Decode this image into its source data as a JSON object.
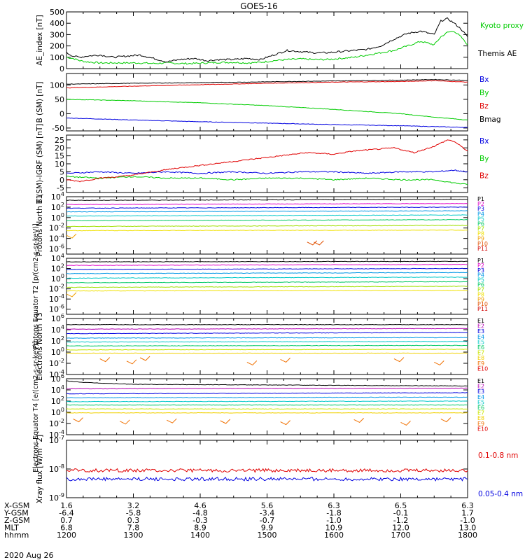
{
  "title": "GOES-16",
  "date_label": "2020 Aug 26",
  "colors": {
    "black": "#000000",
    "red": "#e00000",
    "green": "#00cc00",
    "blue": "#0000e0",
    "p_scale": [
      "#000000",
      "#e000c8",
      "#0000e0",
      "#0096e6",
      "#00c8c8",
      "#00c864",
      "#a0e000",
      "#f0e000",
      "#f0a000",
      "#e05000",
      "#d00000"
    ],
    "e_scale": [
      "#000000",
      "#b400b4",
      "#0000e0",
      "#0096e6",
      "#00c8c8",
      "#00c864",
      "#c8e600",
      "#f0d000",
      "#f07000",
      "#e00000"
    ]
  },
  "chart_data": [
    {
      "type": "line",
      "ylabel": "AE_index [nT]",
      "ylim": [
        0,
        500
      ],
      "yticks": [
        "0",
        "100",
        "200",
        "300",
        "400",
        "500"
      ],
      "legend": [
        "Kyoto proxy AE",
        "Themis AE"
      ],
      "series": [
        {
          "name": "Kyoto proxy AE",
          "x": [
            12.0,
            12.1,
            12.2,
            12.3,
            12.5,
            12.7,
            12.9,
            13.1,
            13.3,
            13.5,
            13.7,
            13.9,
            14.1,
            14.3,
            14.5,
            14.7,
            14.9,
            15.1,
            15.3,
            15.5,
            15.7,
            15.9,
            16.1,
            16.3,
            16.5,
            16.7,
            16.9,
            17.1,
            17.3,
            17.5,
            17.6,
            17.7,
            17.8,
            17.9,
            18.0
          ],
          "y": [
            100,
            90,
            70,
            60,
            50,
            50,
            50,
            50,
            45,
            50,
            45,
            45,
            50,
            55,
            55,
            50,
            55,
            70,
            80,
            85,
            80,
            80,
            90,
            100,
            120,
            140,
            160,
            200,
            240,
            210,
            280,
            320,
            330,
            280,
            210
          ]
        },
        {
          "name": "Themis AE",
          "x": [
            12.0,
            12.1,
            12.2,
            12.3,
            12.5,
            12.7,
            12.9,
            13.1,
            13.3,
            13.5,
            13.7,
            13.9,
            14.1,
            14.3,
            14.5,
            14.7,
            14.9,
            15.1,
            15.3,
            15.5,
            15.7,
            15.9,
            16.1,
            16.3,
            16.5,
            16.7,
            16.9,
            17.1,
            17.3,
            17.5,
            17.6,
            17.7,
            17.8,
            17.9,
            18.0
          ],
          "y": [
            140,
            110,
            100,
            110,
            120,
            100,
            110,
            120,
            90,
            60,
            80,
            90,
            70,
            80,
            80,
            90,
            80,
            120,
            160,
            150,
            140,
            140,
            150,
            160,
            170,
            200,
            260,
            310,
            330,
            300,
            420,
            440,
            400,
            350,
            280
          ]
        }
      ]
    },
    {
      "type": "line",
      "ylabel": "B (SM) [nT]",
      "ylim": [
        -60,
        140
      ],
      "yticks": [
        "-50",
        "0",
        "50",
        "100"
      ],
      "yticks_val": [
        -50,
        0,
        50,
        100
      ],
      "legend": [
        "Bx",
        "By",
        "Bz",
        "Bmag"
      ],
      "series": [
        {
          "name": "Bx",
          "x": [
            12,
            13,
            14,
            15,
            16,
            17,
            17.5,
            18
          ],
          "y": [
            -15,
            -22,
            -28,
            -33,
            -38,
            -42,
            -45,
            -48
          ]
        },
        {
          "name": "By",
          "x": [
            12,
            13,
            14,
            15,
            16,
            17,
            17.5,
            18
          ],
          "y": [
            50,
            45,
            38,
            28,
            15,
            0,
            -12,
            -22
          ]
        },
        {
          "name": "Bz",
          "x": [
            12,
            13,
            14,
            15,
            16,
            17,
            17.5,
            18
          ],
          "y": [
            90,
            96,
            101,
            106,
            110,
            112,
            115,
            110
          ]
        },
        {
          "name": "Bmag",
          "x": [
            12,
            13,
            14,
            15,
            16,
            17,
            17.5,
            18
          ],
          "y": [
            103,
            106,
            108,
            111,
            114,
            117,
            119,
            116
          ]
        }
      ]
    },
    {
      "type": "line",
      "ylabel": "B (SM)-IGRF (SM) [nT]",
      "ylim": [
        -8,
        28
      ],
      "yticks": [
        "-5",
        "0",
        "5",
        "10",
        "15",
        "20",
        "25"
      ],
      "yticks_val": [
        -5,
        0,
        5,
        10,
        15,
        20,
        25
      ],
      "legend": [
        "Bx",
        "By",
        "Bz"
      ],
      "series": [
        {
          "name": "Bx",
          "x": [
            12,
            12.5,
            13,
            13.5,
            14,
            14.5,
            15,
            15.5,
            16,
            16.5,
            17,
            17.5,
            17.8,
            18
          ],
          "y": [
            4,
            5,
            4,
            5,
            4,
            5,
            4,
            5,
            5,
            4,
            5,
            5,
            6,
            5
          ]
        },
        {
          "name": "By",
          "x": [
            12,
            12.5,
            13,
            13.5,
            14,
            14.5,
            15,
            15.5,
            16,
            16.5,
            17,
            17.5,
            17.8,
            18
          ],
          "y": [
            2,
            1,
            2,
            1,
            1,
            0,
            1,
            1,
            0,
            1,
            0,
            0,
            -2,
            -3
          ]
        },
        {
          "name": "Bz",
          "x": [
            12,
            12.2,
            12.5,
            12.8,
            13.0,
            13.3,
            13.6,
            14.0,
            14.4,
            14.8,
            15.2,
            15.6,
            16.0,
            16.3,
            16.6,
            16.9,
            17.2,
            17.5,
            17.7,
            17.8,
            17.9,
            18.0
          ],
          "y": [
            0,
            -1,
            1,
            2,
            3,
            5,
            7,
            9,
            11,
            13,
            15,
            17,
            16,
            18,
            19,
            20,
            17,
            21,
            25,
            24,
            21,
            18
          ]
        }
      ]
    },
    {
      "type": "line",
      "ylabel": "Protons North T1",
      "scale": "log",
      "ylim": [
        -7,
        4
      ],
      "yticks": [
        "10^4",
        "10^2",
        "10^0",
        "10^-2",
        "10^-4",
        "10^-6"
      ],
      "yticks_val": [
        4,
        2,
        0,
        -2,
        -4,
        -6
      ],
      "legend": [
        "P1",
        "P2",
        "P3",
        "P4",
        "P5",
        "P6",
        "P7",
        "P8",
        "P9",
        "P10",
        "P11"
      ],
      "series": [
        {
          "name": "P1",
          "x": [
            12,
            18
          ],
          "y": [
            3.3,
            3.5
          ]
        },
        {
          "name": "P2",
          "x": [
            12,
            18
          ],
          "y": [
            2.5,
            2.7
          ]
        },
        {
          "name": "P3",
          "x": [
            12,
            18
          ],
          "y": [
            1.8,
            2.0
          ]
        },
        {
          "name": "P4",
          "x": [
            12,
            18
          ],
          "y": [
            1.1,
            1.3
          ]
        },
        {
          "name": "P5",
          "x": [
            12,
            18
          ],
          "y": [
            0.3,
            0.5
          ]
        },
        {
          "name": "P6",
          "x": [
            12,
            18
          ],
          "y": [
            -0.6,
            -0.4
          ]
        },
        {
          "name": "P7",
          "x": [
            12,
            18
          ],
          "y": [
            -1.7,
            -1.5
          ]
        },
        {
          "name": "P8",
          "x": [
            12,
            18
          ],
          "y": [
            -2.5,
            -2.4
          ]
        },
        {
          "name": "P9",
          "x": [
            12,
            18
          ],
          "y": [
            -3.4,
            -3.4
          ]
        },
        {
          "name": "P10",
          "x": [
            15.6,
            15.7
          ],
          "y": [
            -4.7,
            -4.7
          ]
        }
      ]
    },
    {
      "type": "line",
      "ylabel": "Protons Equator T2 [p/(cm2-s-sr-keV)]",
      "scale": "log",
      "ylim": [
        -7,
        4
      ],
      "yticks": [
        "10^4",
        "10^2",
        "10^0",
        "10^-2",
        "10^-4",
        "10^-6"
      ],
      "yticks_val": [
        4,
        2,
        0,
        -2,
        -4,
        -6
      ],
      "legend": [
        "P1",
        "P2",
        "P3",
        "P4",
        "P5",
        "P6",
        "P7",
        "P8",
        "P9",
        "P10",
        "P11"
      ],
      "series": [
        {
          "name": "P1",
          "x": [
            12,
            18
          ],
          "y": [
            3.3,
            3.4
          ]
        },
        {
          "name": "P2",
          "x": [
            12,
            18
          ],
          "y": [
            2.6,
            2.8
          ]
        },
        {
          "name": "P3",
          "x": [
            12,
            18
          ],
          "y": [
            1.8,
            2.0
          ]
        },
        {
          "name": "P4",
          "x": [
            12,
            18
          ],
          "y": [
            1.0,
            1.2
          ]
        },
        {
          "name": "P5",
          "x": [
            12,
            18
          ],
          "y": [
            0.1,
            0.3
          ]
        },
        {
          "name": "P6",
          "x": [
            12,
            18
          ],
          "y": [
            -0.8,
            -0.6
          ]
        },
        {
          "name": "P7",
          "x": [
            12,
            18
          ],
          "y": [
            -1.7,
            -1.5
          ]
        },
        {
          "name": "P8",
          "x": [
            12,
            18
          ],
          "y": [
            -2.4,
            -2.3
          ]
        },
        {
          "name": "P9",
          "x": [
            12,
            18
          ],
          "y": [
            -3.0,
            -3.0
          ]
        }
      ]
    },
    {
      "type": "line",
      "ylabel": "Electrons North T3",
      "scale": "log",
      "ylim": [
        -4,
        6
      ],
      "yticks": [
        "10^6",
        "10^4",
        "10^2",
        "10^0",
        "10^-2",
        "10^-4"
      ],
      "yticks_val": [
        6,
        4,
        2,
        0,
        -2,
        -4
      ],
      "legend": [
        "E1",
        "E2",
        "E3",
        "E4",
        "E5",
        "E6",
        "E7",
        "E8",
        "E9",
        "E10"
      ],
      "series": [
        {
          "name": "E1",
          "x": [
            12,
            18
          ],
          "y": [
            4.9,
            4.9
          ]
        },
        {
          "name": "E2",
          "x": [
            12,
            18
          ],
          "y": [
            4.1,
            4.2
          ]
        },
        {
          "name": "E3",
          "x": [
            12,
            18
          ],
          "y": [
            3.3,
            3.5
          ]
        },
        {
          "name": "E4",
          "x": [
            12,
            18
          ],
          "y": [
            2.5,
            2.6
          ]
        },
        {
          "name": "E5",
          "x": [
            12,
            18
          ],
          "y": [
            1.8,
            1.9
          ]
        },
        {
          "name": "E6",
          "x": [
            12,
            18
          ],
          "y": [
            1.1,
            1.2
          ]
        },
        {
          "name": "E7",
          "x": [
            12,
            18
          ],
          "y": [
            0.4,
            0.5
          ]
        },
        {
          "name": "E8",
          "x": [
            12,
            18
          ],
          "y": [
            -0.2,
            -0.2
          ]
        },
        {
          "name": "E9",
          "x": [
            12.5,
            12.9,
            13.1,
            14.7,
            15.2,
            16.9,
            17.5,
            18.0
          ],
          "y": [
            -1.2,
            -1.6,
            -1.0,
            -1.8,
            -1.3,
            -1.2,
            -1.8,
            -1.4
          ]
        }
      ]
    },
    {
      "type": "line",
      "ylabel": "Electrons Equator T4 [e/(cm2-s-sr-keV)]",
      "scale": "log",
      "ylim": [
        -4,
        6
      ],
      "yticks": [
        "10^6",
        "10^4",
        "10^2",
        "10^0",
        "10^-2",
        "10^-4"
      ],
      "yticks_val": [
        6,
        4,
        2,
        0,
        -2,
        -4
      ],
      "legend": [
        "E1",
        "E2",
        "E3",
        "E4",
        "E5",
        "E6",
        "E7",
        "E8",
        "E9",
        "E10"
      ],
      "series": [
        {
          "name": "E1",
          "x": [
            12,
            12.3,
            13,
            18
          ],
          "y": [
            5.6,
            5.3,
            5.0,
            4.7
          ]
        },
        {
          "name": "E2",
          "x": [
            12,
            18
          ],
          "y": [
            4.2,
            4.3
          ]
        },
        {
          "name": "E3",
          "x": [
            12,
            18
          ],
          "y": [
            3.3,
            3.5
          ]
        },
        {
          "name": "E4",
          "x": [
            12,
            18
          ],
          "y": [
            2.6,
            2.7
          ]
        },
        {
          "name": "E5",
          "x": [
            12,
            18
          ],
          "y": [
            1.9,
            2.0
          ]
        },
        {
          "name": "E6",
          "x": [
            12,
            18
          ],
          "y": [
            1.3,
            1.3
          ]
        },
        {
          "name": "E7",
          "x": [
            12,
            18
          ],
          "y": [
            0.6,
            0.6
          ]
        },
        {
          "name": "E8",
          "x": [
            12,
            18
          ],
          "y": [
            -0.1,
            -0.1
          ]
        },
        {
          "name": "E9",
          "x": [
            12.1,
            12.8,
            13.5,
            14.3,
            15.2,
            16.3,
            17.0,
            17.6
          ],
          "y": [
            -1.2,
            -1.6,
            -1.4,
            -1.5,
            -1.7,
            -1.3,
            -1.8,
            -1.2
          ]
        }
      ]
    },
    {
      "type": "line",
      "ylabel": "Xray flux [W/m^2]",
      "scale": "log",
      "ylim": [
        -9,
        -7
      ],
      "yticks": [
        "10^-7",
        "10^-8",
        "10^-9"
      ],
      "yticks_val": [
        -7,
        -8,
        -9
      ],
      "legend": [
        "0.1-0.8 nm",
        "0.05-0.4 nm"
      ],
      "series": [
        {
          "name": "0.1-0.8 nm",
          "x": [
            12,
            18
          ],
          "y": [
            -8.05,
            -8.05
          ]
        },
        {
          "name": "0.05-0.4 nm",
          "x": [
            12,
            18
          ],
          "y": [
            -8.35,
            -8.35
          ]
        }
      ]
    }
  ],
  "footer": {
    "row_labels": [
      "X-GSM",
      "Y-GSM",
      "Z-GSM",
      "MLT",
      "hhmm"
    ],
    "columns": [
      [
        "1.6",
        "-6.4",
        "0.7",
        "6.8",
        "1200"
      ],
      [
        "3.2",
        "-5.8",
        "0.3",
        "7.8",
        "1300"
      ],
      [
        "4.6",
        "-4.8",
        "-0.3",
        "8.9",
        "1400"
      ],
      [
        "5.6",
        "-3.4",
        "-0.7",
        "9.9",
        "1500"
      ],
      [
        "6.3",
        "-1.8",
        "-1.0",
        "10.9",
        "1600"
      ],
      [
        "6.5",
        "-0.1",
        "-1.2",
        "12.0",
        "1700"
      ],
      [
        "6.3",
        "1.7",
        "-1.0",
        "13.0",
        "1800"
      ]
    ]
  }
}
